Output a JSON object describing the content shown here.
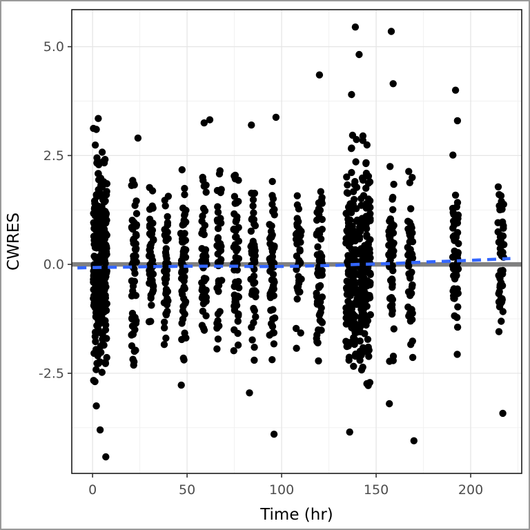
{
  "chart_data": {
    "type": "scatter",
    "title": "",
    "xlabel": "Time (hr)",
    "ylabel": "CWRES",
    "xlim": [
      -11,
      227
    ],
    "ylim": [
      -4.8,
      5.85
    ],
    "x_ticks": [
      {
        "v": 0,
        "label": "0"
      },
      {
        "v": 50,
        "label": "50"
      },
      {
        "v": 100,
        "label": "100"
      },
      {
        "v": 150,
        "label": "150"
      },
      {
        "v": 200,
        "label": "200"
      }
    ],
    "y_ticks": [
      {
        "v": -2.5,
        "label": "-2.5"
      },
      {
        "v": 0,
        "label": "0.0"
      },
      {
        "v": 2.5,
        "label": "2.5"
      },
      {
        "v": 5,
        "label": "5.0"
      }
    ],
    "x_minor_ticks": [
      25,
      75,
      125,
      175,
      225
    ],
    "y_minor_ticks": [
      -3.75,
      -1.25,
      1.25,
      3.75
    ],
    "grid": true,
    "legend": "none",
    "colors": {
      "point": "#000000",
      "reference_line": "#808080",
      "trend_line": "#3366FF",
      "grid_major": "#E5E5E5",
      "grid_minor": "#F1F1F1",
      "panel_border": "#1A1A1A",
      "axis_text": "#4D4D4D",
      "axis_title": "#000000",
      "panel_background": "#FFFFFF"
    },
    "reference_line": {
      "y": 0.0,
      "width": 6.5
    },
    "trend_line": {
      "style": "dashed",
      "width": 4.5,
      "points": [
        [
          -8,
          -0.08
        ],
        [
          4,
          -0.07
        ],
        [
          22,
          -0.06
        ],
        [
          31,
          -0.05
        ],
        [
          39,
          -0.05
        ],
        [
          48,
          -0.04
        ],
        [
          59,
          -0.04
        ],
        [
          67,
          -0.04
        ],
        [
          76,
          -0.04
        ],
        [
          85,
          -0.05
        ],
        [
          95,
          -0.05
        ],
        [
          109,
          -0.04
        ],
        [
          120,
          -0.03
        ],
        [
          130,
          -0.02
        ],
        [
          140,
          0.0
        ],
        [
          150,
          0.01
        ],
        [
          158,
          0.02
        ],
        [
          168,
          0.04
        ],
        [
          180,
          0.06
        ],
        [
          192,
          0.08
        ],
        [
          204,
          0.1
        ],
        [
          221,
          0.135
        ]
      ]
    },
    "point_clusters": [
      {
        "x": 4,
        "x_jitter": 3.6,
        "n": 310,
        "y_mean": 0.05,
        "y_sd": 1.18,
        "y_min": -2.85,
        "y_max": 3.4
      },
      {
        "x": 22,
        "x_jitter": 1.4,
        "n": 62,
        "y_mean": 0,
        "y_sd": 1.0,
        "y_min": -2.65,
        "y_max": 2.45
      },
      {
        "x": 31,
        "x_jitter": 1.2,
        "n": 46,
        "y_mean": 0,
        "y_sd": 0.95,
        "y_min": -2.1,
        "y_max": 1.95
      },
      {
        "x": 39,
        "x_jitter": 1.2,
        "n": 44,
        "y_mean": 0,
        "y_sd": 0.92,
        "y_min": -1.95,
        "y_max": 1.85
      },
      {
        "x": 48,
        "x_jitter": 1.4,
        "n": 66,
        "y_mean": 0,
        "y_sd": 1.05,
        "y_min": -2.8,
        "y_max": 2.5
      },
      {
        "x": 59,
        "x_jitter": 1.4,
        "n": 55,
        "y_mean": 0,
        "y_sd": 1.0,
        "y_min": -2.15,
        "y_max": 2.6
      },
      {
        "x": 67,
        "x_jitter": 1.3,
        "n": 42,
        "y_mean": 0,
        "y_sd": 0.95,
        "y_min": -2.2,
        "y_max": 2.3
      },
      {
        "x": 76,
        "x_jitter": 1.4,
        "n": 58,
        "y_mean": 0,
        "y_sd": 1.05,
        "y_min": -2.35,
        "y_max": 2.55
      },
      {
        "x": 85,
        "x_jitter": 1.4,
        "n": 48,
        "y_mean": 0,
        "y_sd": 1.0,
        "y_min": -2.55,
        "y_max": 2.6
      },
      {
        "x": 95,
        "x_jitter": 1.4,
        "n": 56,
        "y_mean": 0,
        "y_sd": 1.05,
        "y_min": -2.3,
        "y_max": 2.45
      },
      {
        "x": 109,
        "x_jitter": 1.4,
        "n": 40,
        "y_mean": 0,
        "y_sd": 0.95,
        "y_min": -2.1,
        "y_max": 2.2
      },
      {
        "x": 120,
        "x_jitter": 1.6,
        "n": 64,
        "y_mean": 0,
        "y_sd": 1.0,
        "y_min": -2.25,
        "y_max": 2.6
      },
      {
        "x": 137,
        "x_jitter": 3.0,
        "n": 170,
        "y_mean": -0.05,
        "y_sd": 1.2,
        "y_min": -2.95,
        "y_max": 3.55
      },
      {
        "x": 144,
        "x_jitter": 3.0,
        "n": 150,
        "y_mean": 0,
        "y_sd": 1.2,
        "y_min": -2.9,
        "y_max": 3.3
      },
      {
        "x": 158,
        "x_jitter": 1.4,
        "n": 58,
        "y_mean": 0,
        "y_sd": 1.1,
        "y_min": -2.6,
        "y_max": 2.45
      },
      {
        "x": 168,
        "x_jitter": 1.4,
        "n": 52,
        "y_mean": 0,
        "y_sd": 1.0,
        "y_min": -2.45,
        "y_max": 2.35
      },
      {
        "x": 192,
        "x_jitter": 1.6,
        "n": 54,
        "y_mean": 0,
        "y_sd": 1.1,
        "y_min": -2.45,
        "y_max": 3.15
      },
      {
        "x": 216,
        "x_jitter": 1.6,
        "n": 52,
        "y_mean": 0.05,
        "y_sd": 0.95,
        "y_min": -1.95,
        "y_max": 2.1
      }
    ],
    "outlier_points": [
      [
        2,
        -3.25
      ],
      [
        4,
        -3.8
      ],
      [
        7,
        -4.42
      ],
      [
        3,
        3.35
      ],
      [
        2,
        3.1
      ],
      [
        24,
        2.9
      ],
      [
        59,
        3.25
      ],
      [
        62,
        3.32
      ],
      [
        84,
        3.2
      ],
      [
        83,
        -2.95
      ],
      [
        97,
        3.38
      ],
      [
        96,
        -3.9
      ],
      [
        120,
        4.35
      ],
      [
        139,
        5.45
      ],
      [
        141,
        4.82
      ],
      [
        137,
        3.9
      ],
      [
        136,
        -3.85
      ],
      [
        143,
        2.95
      ],
      [
        158,
        5.35
      ],
      [
        159,
        4.15
      ],
      [
        157,
        -3.2
      ],
      [
        170,
        -4.05
      ],
      [
        192,
        4.0
      ],
      [
        193,
        3.3
      ],
      [
        217,
        -3.42
      ]
    ],
    "point_radius_px": 5.2
  }
}
